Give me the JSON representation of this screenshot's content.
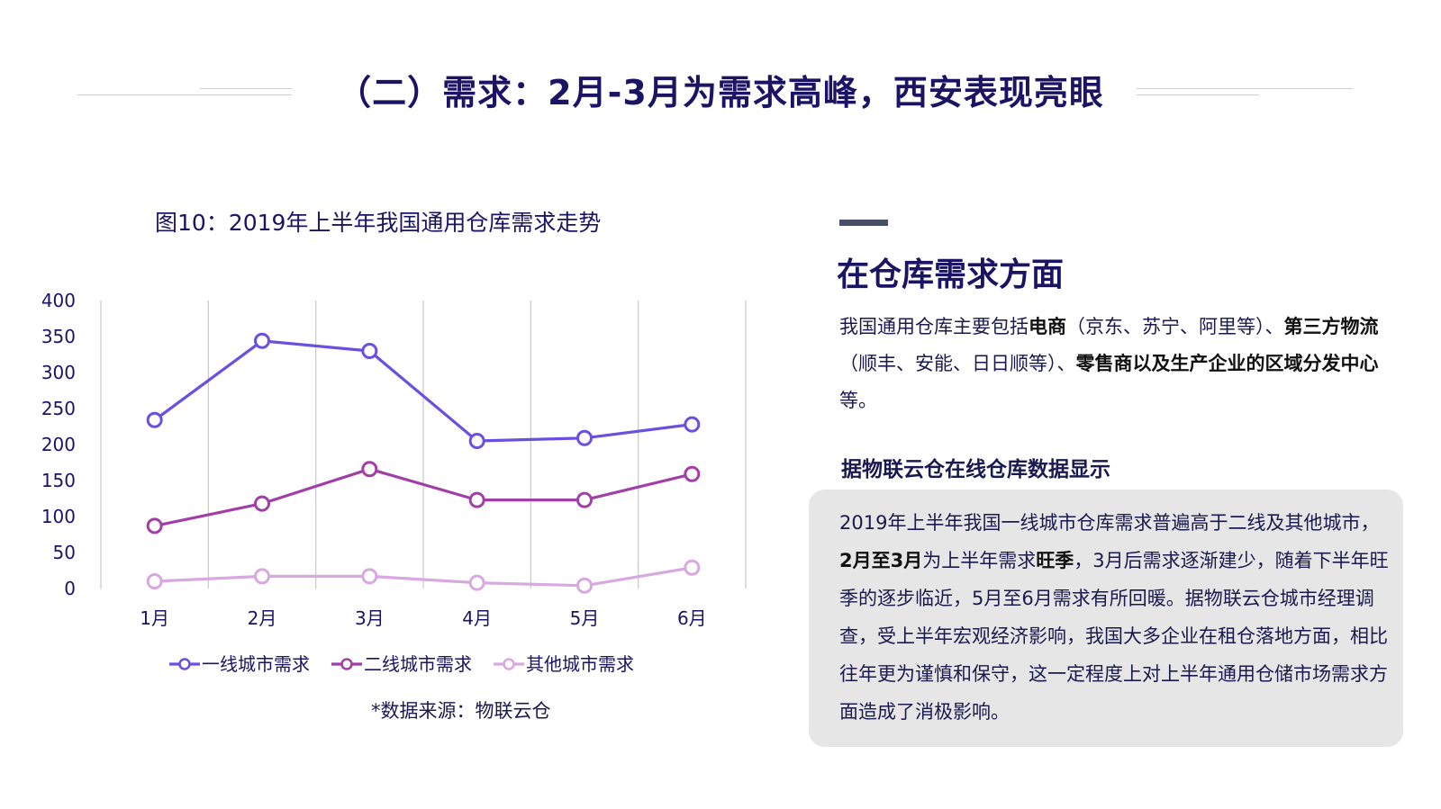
{
  "page": {
    "title": "（二）需求：2月-3月为需求高峰，西安表现亮眼"
  },
  "chart_title": "图10：2019年上半年我国通用仓库需求走势",
  "source_note": "*数据来源：物联云仓",
  "chart_data": {
    "type": "line",
    "title": "图10：2019年上半年我国通用仓库需求走势",
    "categories": [
      "1月",
      "2月",
      "3月",
      "4月",
      "5月",
      "6月"
    ],
    "y_ticks": [
      0,
      50,
      100,
      150,
      200,
      250,
      300,
      350,
      400
    ],
    "ylim": [
      0,
      400
    ],
    "grid": "vertical",
    "legend": "bottom",
    "series": [
      {
        "name": "一线城市需求",
        "color": "#6a4fe0",
        "values": [
          234,
          344,
          330,
          205,
          209,
          228
        ]
      },
      {
        "name": "二线城市需求",
        "color": "#a23fa6",
        "values": [
          87,
          118,
          166,
          123,
          123,
          159
        ]
      },
      {
        "name": "其他城市需求",
        "color": "#d8a8e0",
        "values": [
          10,
          17,
          17,
          8,
          4,
          29
        ]
      }
    ]
  },
  "right": {
    "heading": "在仓库需求方面",
    "para1": [
      {
        "t": "我国通用仓库主要包括",
        "b": false
      },
      {
        "t": "电商",
        "b": true
      },
      {
        "t": "（京东、苏宁、阿里等）、",
        "b": false
      },
      {
        "t": "第三方物流",
        "b": true
      },
      {
        "t": "（顺丰、安能、日日顺等）、",
        "b": false
      },
      {
        "t": "零售商以及生产企业的区域分发中心",
        "b": true
      },
      {
        "t": "等。",
        "b": false
      }
    ],
    "subheading": "据物联云仓在线仓库数据显示",
    "card": [
      {
        "t": "2019年上半年我国一线城市仓库需求普遍高于二线及其他城市，",
        "b": false
      },
      {
        "t": "2月至3月",
        "b": true
      },
      {
        "t": "为上半年需求",
        "b": false
      },
      {
        "t": "旺季",
        "b": true
      },
      {
        "t": "，3月后需求逐渐建少，随着下半年旺季的逐步临近，5月至6月需求有所回暖。据物联云仓城市经理调查，受上半年宏观经济影响，我国大多企业在租仓落地方面，相比往年更为谨慎和保守，这一定程度上对上半年通用仓储市场需求方面造成了消极影响。",
        "b": false
      }
    ]
  }
}
